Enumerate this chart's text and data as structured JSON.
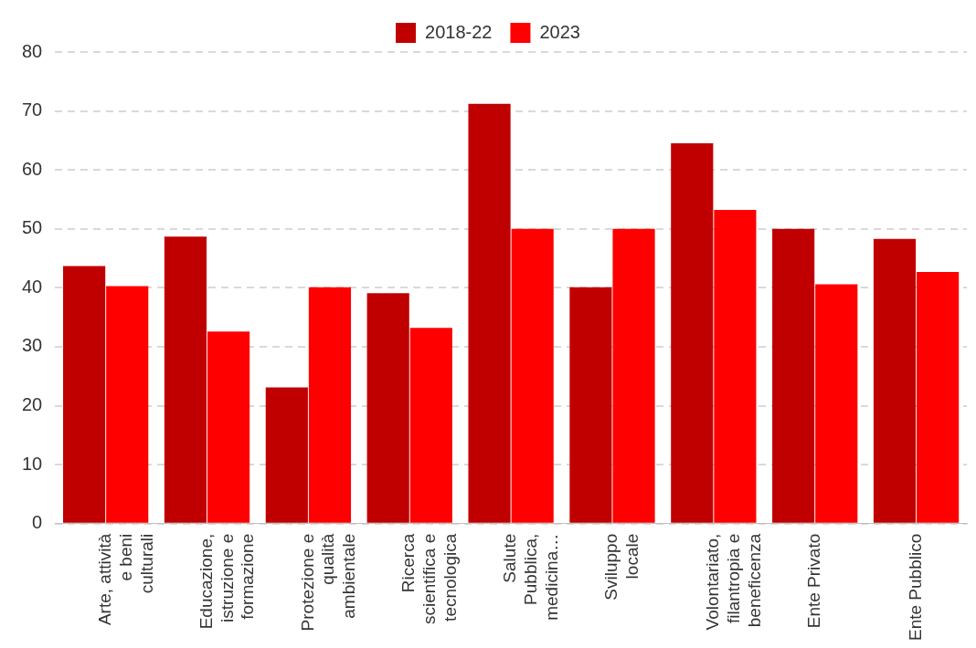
{
  "chart_data": {
    "type": "bar",
    "categories": [
      "Arte, attività e beni culturali",
      "Educazione, istruzione e formazione",
      "Protezione e qualità ambientale",
      "Ricerca scientifica e tecnologica",
      "Salute Pubblica, medicina…",
      "Sviluppo locale",
      "Volontariato, filantropia e beneficenza",
      "Ente Privato",
      "Ente Pubblico"
    ],
    "series": [
      {
        "name": "2018-22",
        "color": "#c00000",
        "values": [
          43.7,
          48.7,
          23.1,
          39.1,
          71.2,
          40.1,
          64.5,
          50.0,
          48.3
        ]
      },
      {
        "name": "2023",
        "color": "#ff0000",
        "values": [
          40.3,
          32.6,
          40.1,
          33.2,
          50.0,
          50.0,
          53.2,
          40.6,
          42.7
        ]
      }
    ],
    "ylim": [
      0,
      80
    ],
    "yticks": [
      0,
      10,
      20,
      30,
      40,
      50,
      60,
      70,
      80
    ],
    "grid": "y",
    "legend": "top"
  }
}
